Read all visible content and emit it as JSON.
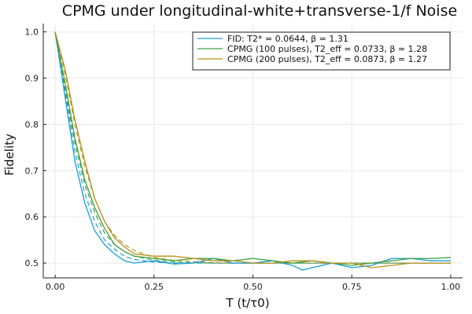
{
  "chart_data": {
    "type": "line",
    "title": "CPMG under longitudinal-white+transverse-1/f Noise",
    "xlabel": "T (t/τ0)",
    "ylabel": "Fidelity",
    "xlim": [
      -0.03,
      1.03
    ],
    "ylim": [
      0.468,
      1.018
    ],
    "xticks": [
      0.0,
      0.25,
      0.5,
      0.75,
      1.0
    ],
    "xtick_labels": [
      "0.00",
      "0.25",
      "0.50",
      "0.75",
      "1.00"
    ],
    "yticks": [
      0.5,
      0.6,
      0.7,
      0.8,
      0.9,
      1.0
    ],
    "ytick_labels": [
      "0.5",
      "0.6",
      "0.7",
      "0.8",
      "0.9",
      "1.0"
    ],
    "grid": true,
    "legend_position": "top-right",
    "fit_style": "dashed",
    "series": [
      {
        "name": "FID: T2* = 0.0644, β = 1.31",
        "color": "#1a9edb",
        "x": [
          0,
          0.025,
          0.05,
          0.075,
          0.1,
          0.125,
          0.15,
          0.175,
          0.2,
          0.25,
          0.3,
          0.35,
          0.4,
          0.45,
          0.5,
          0.55,
          0.6,
          0.625,
          0.65,
          0.7,
          0.75,
          0.8,
          0.85,
          0.9,
          0.95,
          1.0
        ],
        "y": [
          1.0,
          0.86,
          0.72,
          0.63,
          0.57,
          0.54,
          0.52,
          0.505,
          0.5,
          0.505,
          0.498,
          0.5,
          0.51,
          0.5,
          0.5,
          0.505,
          0.495,
          0.485,
          0.49,
          0.5,
          0.49,
          0.495,
          0.51,
          0.51,
          0.505,
          0.505
        ],
        "fit_y": [
          1.0,
          0.87,
          0.74,
          0.65,
          0.59,
          0.55,
          0.53,
          0.515,
          0.508,
          0.502,
          0.5,
          0.5,
          0.5,
          0.5,
          0.5,
          0.5,
          0.5,
          0.5,
          0.5,
          0.5,
          0.5,
          0.5,
          0.5,
          0.5,
          0.5,
          0.5
        ]
      },
      {
        "name": "CPMG (100 pulses), T2_eff = 0.0733, β = 1.28",
        "color": "#3ea13e",
        "x": [
          0,
          0.025,
          0.05,
          0.075,
          0.1,
          0.125,
          0.15,
          0.175,
          0.2,
          0.25,
          0.3,
          0.35,
          0.4,
          0.45,
          0.5,
          0.55,
          0.6,
          0.65,
          0.7,
          0.75,
          0.8,
          0.85,
          0.9,
          0.95,
          1.0
        ],
        "y": [
          1.0,
          0.89,
          0.77,
          0.68,
          0.62,
          0.575,
          0.54,
          0.525,
          0.515,
          0.51,
          0.505,
          0.51,
          0.51,
          0.505,
          0.51,
          0.505,
          0.5,
          0.505,
          0.5,
          0.495,
          0.5,
          0.505,
          0.51,
          0.51,
          0.512
        ],
        "fit_y": [
          1.0,
          0.88,
          0.76,
          0.67,
          0.61,
          0.565,
          0.54,
          0.525,
          0.515,
          0.506,
          0.502,
          0.501,
          0.5,
          0.5,
          0.5,
          0.5,
          0.5,
          0.5,
          0.5,
          0.5,
          0.5,
          0.5,
          0.5,
          0.5,
          0.5
        ]
      },
      {
        "name": "CPMG (200 pulses), T2_eff = 0.0873, β = 1.27",
        "color": "#b8901a",
        "x": [
          0,
          0.025,
          0.05,
          0.075,
          0.1,
          0.125,
          0.15,
          0.175,
          0.2,
          0.25,
          0.3,
          0.35,
          0.4,
          0.45,
          0.5,
          0.55,
          0.6,
          0.65,
          0.7,
          0.75,
          0.8,
          0.85,
          0.9,
          0.95,
          1.0
        ],
        "y": [
          1.0,
          0.92,
          0.81,
          0.72,
          0.64,
          0.59,
          0.555,
          0.535,
          0.52,
          0.515,
          0.515,
          0.51,
          0.505,
          0.505,
          0.5,
          0.5,
          0.505,
          0.505,
          0.5,
          0.5,
          0.49,
          0.495,
          0.5,
          0.5,
          0.5
        ],
        "fit_y": [
          1.0,
          0.91,
          0.8,
          0.71,
          0.64,
          0.59,
          0.56,
          0.54,
          0.527,
          0.512,
          0.506,
          0.503,
          0.501,
          0.5,
          0.5,
          0.5,
          0.5,
          0.5,
          0.5,
          0.5,
          0.5,
          0.5,
          0.5,
          0.5,
          0.5
        ]
      }
    ]
  }
}
